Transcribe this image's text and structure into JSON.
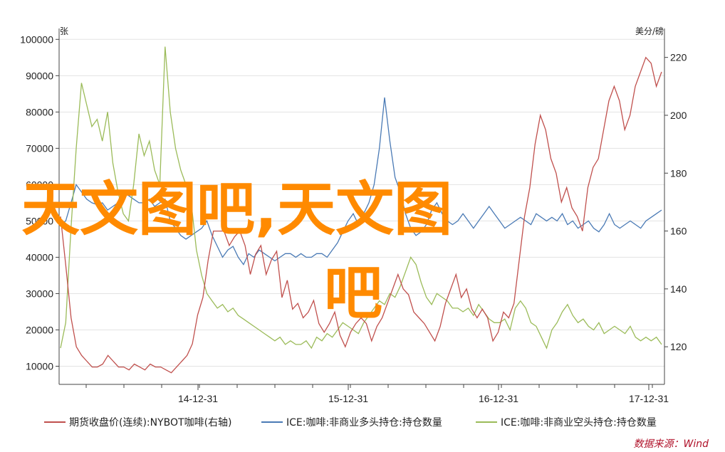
{
  "chart_data": {
    "type": "line",
    "x_ticks": [
      "14-12-31",
      "15-12-31",
      "16-12-31",
      "17-12-31"
    ],
    "left_axis": {
      "unit": "张",
      "ticks": [
        10000,
        20000,
        30000,
        40000,
        50000,
        60000,
        70000,
        80000,
        90000,
        100000
      ],
      "range": [
        5000,
        103000
      ]
    },
    "right_axis": {
      "unit": "美分/磅",
      "ticks": [
        120,
        140,
        160,
        180,
        200,
        220
      ],
      "range": [
        107,
        230
      ]
    },
    "series": [
      {
        "name": "期货收盘价(连续):NYBOT咖啡(右轴)",
        "axis": "right",
        "color": "#c0504d",
        "values": [
          165,
          148,
          130,
          120,
          117,
          115,
          113,
          113,
          114,
          117,
          115,
          113,
          113,
          112,
          114,
          113,
          112,
          114,
          113,
          113,
          112,
          111,
          113,
          115,
          117,
          121,
          131,
          137,
          150,
          160,
          160,
          160,
          155,
          158,
          160,
          155,
          145,
          152,
          155,
          145,
          150,
          153,
          137,
          143,
          133,
          135,
          130,
          132,
          136,
          128,
          125,
          128,
          132,
          124,
          120,
          125,
          128,
          130,
          128,
          122,
          127,
          130,
          135,
          140,
          145,
          140,
          138,
          132,
          130,
          128,
          125,
          122,
          127,
          135,
          140,
          145,
          137,
          140,
          133,
          130,
          133,
          130,
          122,
          125,
          132,
          130,
          135,
          150,
          165,
          175,
          190,
          200,
          195,
          185,
          180,
          170,
          175,
          168,
          165,
          160,
          175,
          182,
          185,
          195,
          205,
          210,
          205,
          195,
          200,
          210,
          215,
          220,
          218,
          210,
          215
        ]
      },
      {
        "name": "ICE:咖啡:非商业多头持仓:持仓数量",
        "axis": "left",
        "color": "#4a7ab5",
        "values": [
          49000,
          50000,
          55000,
          60000,
          58000,
          56000,
          55000,
          54500,
          55000,
          53000,
          54000,
          55000,
          58000,
          57000,
          56000,
          55000,
          55000,
          56000,
          54000,
          55000,
          56000,
          50000,
          48000,
          46000,
          45000,
          46000,
          47000,
          48000,
          50000,
          46000,
          43000,
          40000,
          42000,
          43000,
          40000,
          38000,
          41000,
          40000,
          42000,
          41000,
          40000,
          39000,
          40000,
          41000,
          41000,
          40000,
          41000,
          40000,
          40000,
          41000,
          41000,
          40000,
          42000,
          44000,
          47000,
          50000,
          52000,
          49000,
          52000,
          55000,
          60000,
          70000,
          84000,
          72000,
          62000,
          58000,
          52000,
          48000,
          46000,
          47000,
          49000,
          53000,
          55000,
          52000,
          50000,
          49000,
          50000,
          52000,
          50000,
          48000,
          50000,
          52000,
          54000,
          52000,
          50000,
          48000,
          49000,
          50000,
          51000,
          50000,
          49000,
          52000,
          51000,
          50000,
          51000,
          50000,
          52000,
          49000,
          50000,
          48000,
          49000,
          50000,
          48000,
          47000,
          49000,
          52000,
          49000,
          48000,
          49000,
          50000,
          49000,
          48000,
          50000,
          51000,
          52000,
          53000
        ]
      },
      {
        "name": "ICE:咖啡:非商业空头持仓:持仓数量",
        "axis": "left",
        "color": "#9bbb59",
        "values": [
          15000,
          22000,
          48000,
          70000,
          88000,
          82000,
          76000,
          78000,
          72000,
          80000,
          66000,
          58000,
          52000,
          50000,
          60000,
          74000,
          68000,
          72000,
          64000,
          60000,
          98000,
          80000,
          70000,
          64000,
          60000,
          55000,
          42000,
          35000,
          30000,
          28000,
          26000,
          27000,
          25000,
          26000,
          24000,
          23000,
          22000,
          21000,
          20000,
          19000,
          18000,
          17000,
          18000,
          16000,
          17000,
          16000,
          16000,
          17000,
          15000,
          18000,
          17000,
          19000,
          18000,
          20000,
          22000,
          21000,
          20000,
          19000,
          22000,
          24000,
          26000,
          28000,
          27000,
          30000,
          29000,
          32000,
          36000,
          40000,
          38000,
          33000,
          29000,
          27000,
          30000,
          29000,
          28000,
          26000,
          26000,
          25000,
          26000,
          24000,
          27000,
          25000,
          23000,
          22000,
          22000,
          23000,
          20000,
          26000,
          28000,
          26000,
          22000,
          21000,
          18000,
          15000,
          20000,
          22000,
          25000,
          27000,
          24000,
          22000,
          23000,
          21000,
          20000,
          22000,
          19000,
          20000,
          21000,
          20000,
          19000,
          21000,
          18000,
          17000,
          18000,
          17000,
          18000,
          16000
        ]
      }
    ],
    "legend_position": "bottom",
    "grid": "horizontal",
    "source": "数据来源：Wind"
  },
  "watermark": {
    "line1": "天文图吧,天文图",
    "line2": "吧"
  }
}
